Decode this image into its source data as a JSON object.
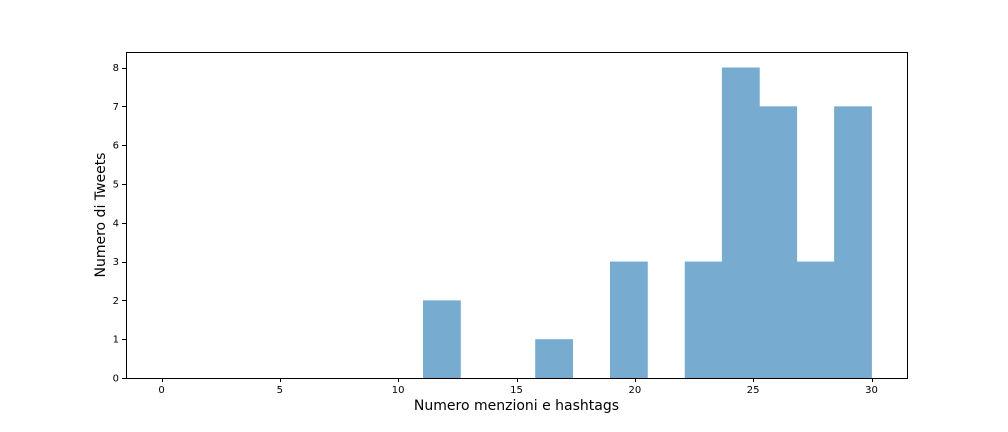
{
  "chart_data": {
    "type": "bar",
    "title": "",
    "xlabel": "Numero menzioni e hashtags",
    "ylabel": "Numero di Tweets",
    "xlim": [
      -1.5,
      31.5
    ],
    "ylim": [
      0,
      8.4
    ],
    "xticks": [
      0,
      5,
      10,
      15,
      20,
      25,
      30
    ],
    "yticks": [
      0,
      1,
      2,
      3,
      4,
      5,
      6,
      7,
      8
    ],
    "grid": false,
    "legend": "none",
    "bar_color": "#77acd0",
    "bins": [
      {
        "x0": 0.0,
        "x1": 1.58,
        "value": 0
      },
      {
        "x0": 1.58,
        "x1": 3.16,
        "value": 0
      },
      {
        "x0": 3.16,
        "x1": 4.74,
        "value": 0
      },
      {
        "x0": 4.74,
        "x1": 6.32,
        "value": 0
      },
      {
        "x0": 6.32,
        "x1": 7.89,
        "value": 0
      },
      {
        "x0": 7.89,
        "x1": 9.47,
        "value": 0
      },
      {
        "x0": 9.47,
        "x1": 11.05,
        "value": 0
      },
      {
        "x0": 11.05,
        "x1": 12.63,
        "value": 2
      },
      {
        "x0": 12.63,
        "x1": 14.21,
        "value": 0
      },
      {
        "x0": 14.21,
        "x1": 15.79,
        "value": 0
      },
      {
        "x0": 15.79,
        "x1": 17.37,
        "value": 1
      },
      {
        "x0": 17.37,
        "x1": 18.95,
        "value": 0
      },
      {
        "x0": 18.95,
        "x1": 20.53,
        "value": 3
      },
      {
        "x0": 20.53,
        "x1": 22.11,
        "value": 0
      },
      {
        "x0": 22.11,
        "x1": 23.68,
        "value": 3
      },
      {
        "x0": 23.68,
        "x1": 25.26,
        "value": 8
      },
      {
        "x0": 25.26,
        "x1": 26.84,
        "value": 7
      },
      {
        "x0": 26.84,
        "x1": 28.42,
        "value": 3
      },
      {
        "x0": 28.42,
        "x1": 30.0,
        "value": 7
      }
    ]
  }
}
